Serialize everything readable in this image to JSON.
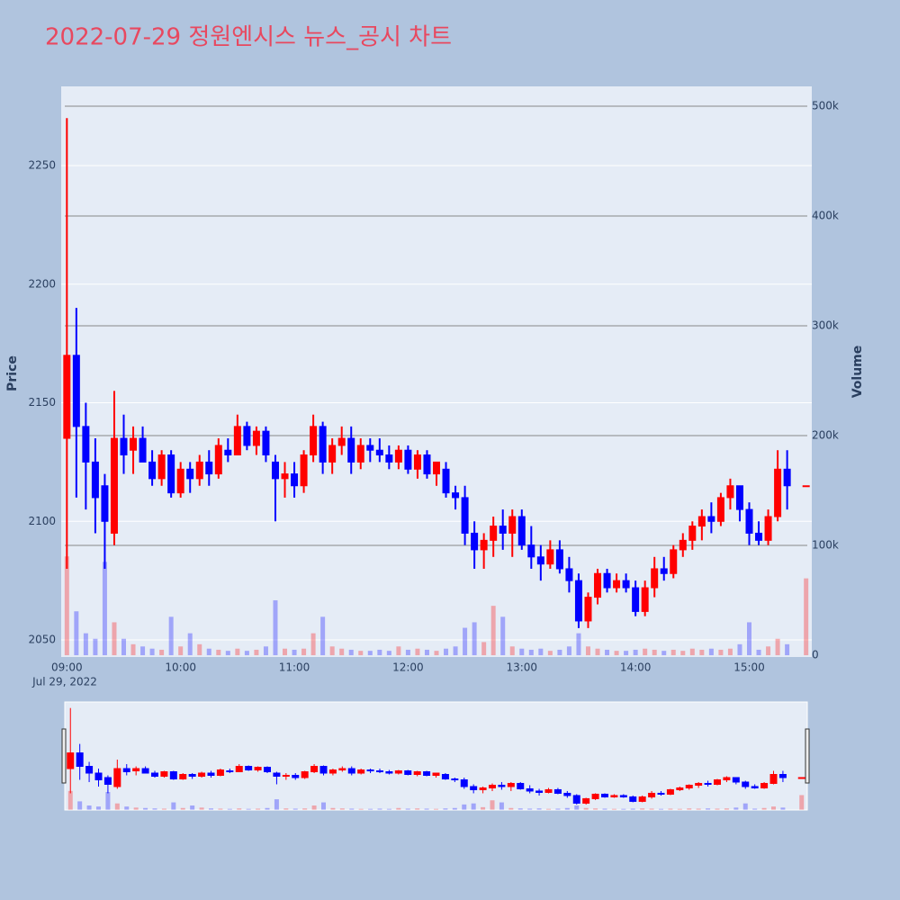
{
  "chart_data": {
    "type": "candlestick",
    "title": "2022-07-29 정원엔시스 뉴스_공시 차트",
    "ylabel": "Price",
    "y2label": "Volume",
    "increasing_color": "#ff0000",
    "decreasing_color": "#0000ff",
    "x": [
      "09:00",
      "09:05",
      "09:10",
      "09:15",
      "09:20",
      "09:25",
      "09:30",
      "09:35",
      "09:40",
      "09:45",
      "09:50",
      "09:55",
      "10:00",
      "10:05",
      "10:10",
      "10:15",
      "10:20",
      "10:25",
      "10:30",
      "10:35",
      "10:40",
      "10:45",
      "10:50",
      "10:55",
      "11:00",
      "11:05",
      "11:10",
      "11:15",
      "11:20",
      "11:25",
      "11:30",
      "11:35",
      "11:40",
      "11:45",
      "11:50",
      "11:55",
      "12:00",
      "12:05",
      "12:10",
      "12:15",
      "12:20",
      "12:25",
      "12:30",
      "12:35",
      "12:40",
      "12:45",
      "12:50",
      "12:55",
      "13:00",
      "13:05",
      "13:10",
      "13:15",
      "13:20",
      "13:25",
      "13:30",
      "13:35",
      "13:40",
      "13:45",
      "13:50",
      "13:55",
      "14:00",
      "14:05",
      "14:10",
      "14:15",
      "14:20",
      "14:25",
      "14:30",
      "14:35",
      "14:40",
      "14:45",
      "14:50",
      "14:55",
      "15:00",
      "15:05",
      "15:10",
      "15:15",
      "15:20",
      "15:30"
    ],
    "open": [
      2135,
      2170,
      2140,
      2125,
      2115,
      2095,
      2135,
      2130,
      2135,
      2125,
      2118,
      2128,
      2112,
      2122,
      2118,
      2125,
      2120,
      2130,
      2128,
      2140,
      2132,
      2138,
      2125,
      2118,
      2120,
      2115,
      2128,
      2140,
      2125,
      2132,
      2135,
      2125,
      2132,
      2130,
      2128,
      2125,
      2130,
      2122,
      2128,
      2120,
      2122,
      2112,
      2110,
      2095,
      2088,
      2092,
      2098,
      2095,
      2102,
      2090,
      2085,
      2082,
      2088,
      2080,
      2075,
      2058,
      2068,
      2078,
      2072,
      2075,
      2072,
      2062,
      2072,
      2080,
      2078,
      2088,
      2092,
      2098,
      2102,
      2100,
      2110,
      2115,
      2105,
      2095,
      2092,
      2102,
      2122,
      2115
    ],
    "high": [
      2270,
      2190,
      2150,
      2135,
      2120,
      2155,
      2145,
      2140,
      2140,
      2130,
      2130,
      2130,
      2125,
      2125,
      2128,
      2130,
      2135,
      2135,
      2145,
      2142,
      2140,
      2140,
      2128,
      2125,
      2125,
      2130,
      2145,
      2142,
      2135,
      2140,
      2140,
      2135,
      2135,
      2135,
      2132,
      2132,
      2132,
      2130,
      2130,
      2125,
      2125,
      2115,
      2115,
      2100,
      2095,
      2102,
      2105,
      2105,
      2105,
      2098,
      2090,
      2092,
      2092,
      2085,
      2078,
      2070,
      2080,
      2080,
      2078,
      2078,
      2075,
      2075,
      2085,
      2085,
      2090,
      2095,
      2100,
      2105,
      2108,
      2112,
      2118,
      2115,
      2108,
      2100,
      2105,
      2130,
      2130,
      2115
    ],
    "low": [
      2080,
      2110,
      2105,
      2095,
      2080,
      2090,
      2120,
      2120,
      2125,
      2115,
      2115,
      2110,
      2110,
      2112,
      2115,
      2115,
      2118,
      2125,
      2128,
      2130,
      2128,
      2125,
      2100,
      2110,
      2110,
      2112,
      2125,
      2120,
      2120,
      2128,
      2120,
      2122,
      2125,
      2125,
      2122,
      2122,
      2120,
      2118,
      2118,
      2115,
      2110,
      2105,
      2090,
      2080,
      2080,
      2085,
      2088,
      2085,
      2088,
      2080,
      2075,
      2080,
      2078,
      2070,
      2055,
      2055,
      2065,
      2070,
      2070,
      2070,
      2060,
      2060,
      2068,
      2075,
      2076,
      2085,
      2088,
      2092,
      2095,
      2098,
      2105,
      2100,
      2090,
      2090,
      2090,
      2100,
      2105,
      2115
    ],
    "close": [
      2170,
      2140,
      2125,
      2110,
      2100,
      2135,
      2128,
      2135,
      2125,
      2118,
      2128,
      2112,
      2122,
      2118,
      2125,
      2120,
      2132,
      2128,
      2140,
      2132,
      2138,
      2128,
      2118,
      2120,
      2115,
      2128,
      2140,
      2125,
      2132,
      2135,
      2125,
      2132,
      2130,
      2128,
      2125,
      2130,
      2122,
      2128,
      2120,
      2125,
      2112,
      2110,
      2095,
      2088,
      2092,
      2098,
      2095,
      2102,
      2090,
      2085,
      2082,
      2088,
      2080,
      2075,
      2058,
      2068,
      2078,
      2072,
      2075,
      2072,
      2062,
      2072,
      2080,
      2078,
      2088,
      2092,
      2098,
      2102,
      2100,
      2110,
      2115,
      2105,
      2095,
      2092,
      2102,
      2122,
      2115,
      2115
    ],
    "volume": [
      90000,
      40000,
      20000,
      15000,
      85000,
      30000,
      15000,
      10000,
      8000,
      6000,
      5000,
      35000,
      8000,
      20000,
      10000,
      6000,
      5000,
      4000,
      6000,
      4000,
      5000,
      8000,
      50000,
      6000,
      5000,
      6000,
      20000,
      35000,
      8000,
      6000,
      5000,
      4000,
      4000,
      5000,
      4000,
      8000,
      5000,
      6000,
      5000,
      4000,
      6000,
      8000,
      25000,
      30000,
      12000,
      45000,
      35000,
      8000,
      6000,
      5000,
      6000,
      4000,
      5000,
      8000,
      20000,
      8000,
      6000,
      5000,
      4000,
      4000,
      5000,
      6000,
      5000,
      4000,
      5000,
      4000,
      6000,
      5000,
      6000,
      5000,
      6000,
      10000,
      30000,
      5000,
      8000,
      15000,
      10000,
      70000
    ],
    "xlim": [
      "08:57",
      "15:33"
    ],
    "xticks": [
      "09:00",
      "10:00",
      "11:00",
      "12:00",
      "13:00",
      "14:00",
      "15:00"
    ],
    "x_date_label": "Jul 29, 2022",
    "ylim": [
      2042.8,
      2283.4
    ],
    "yticks": [
      2050,
      2100,
      2150,
      2200,
      2250
    ],
    "y2lim": [
      -1600,
      518000
    ],
    "y2ticks": [
      0,
      {
        "value": 100000,
        "label": "100k"
      },
      {
        "value": 200000,
        "label": "200k"
      },
      {
        "value": 300000,
        "label": "300k"
      },
      {
        "value": 400000,
        "label": "400k"
      },
      {
        "value": 500000,
        "label": "500k"
      }
    ],
    "grid": true
  }
}
